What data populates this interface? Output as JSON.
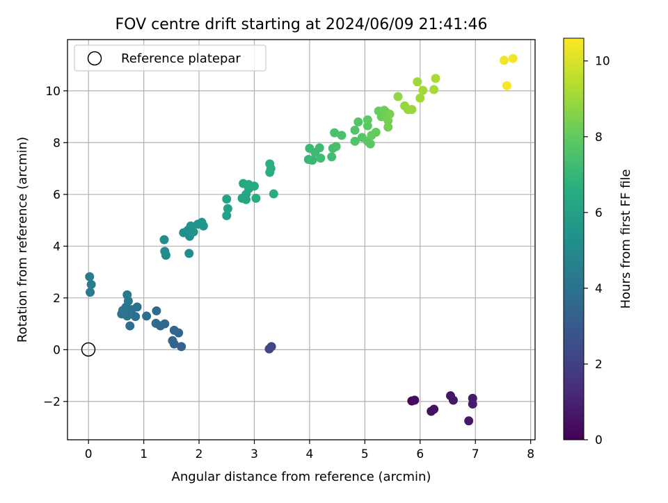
{
  "chart_data": {
    "type": "scatter",
    "title": "FOV centre drift starting at 2024/06/09 21:41:46",
    "xlabel": "Angular distance from reference (arcmin)",
    "ylabel": "Rotation from reference (arcmin)",
    "xlim": [
      -0.38,
      8.08
    ],
    "ylim": [
      -3.48,
      11.98
    ],
    "xticks": [
      0,
      1,
      2,
      3,
      4,
      5,
      6,
      7,
      8
    ],
    "yticks": [
      -2,
      0,
      2,
      4,
      6,
      8,
      10
    ],
    "grid": true,
    "legend": {
      "position": "top-left",
      "entries": [
        {
          "label": "Reference platepar",
          "marker": "open-circle"
        }
      ]
    },
    "reference_point": {
      "x": 0,
      "y": 0
    },
    "colorbar": {
      "label": "Hours from first FF file",
      "min": 0,
      "max": 10.6,
      "ticks": [
        0,
        2,
        4,
        6,
        8,
        10
      ],
      "colormap": "viridis"
    },
    "points": [
      {
        "x": 5.85,
        "y": -1.98,
        "h": 0.25
      },
      {
        "x": 5.9,
        "y": -1.95,
        "h": 0.3
      },
      {
        "x": 6.2,
        "y": -2.38,
        "h": 0.45
      },
      {
        "x": 6.25,
        "y": -2.3,
        "h": 0.5
      },
      {
        "x": 6.55,
        "y": -1.78,
        "h": 0.6
      },
      {
        "x": 6.6,
        "y": -1.95,
        "h": 0.65
      },
      {
        "x": 6.88,
        "y": -2.75,
        "h": 0.7
      },
      {
        "x": 6.95,
        "y": -1.88,
        "h": 0.75
      },
      {
        "x": 6.95,
        "y": -2.1,
        "h": 0.8
      },
      {
        "x": 3.27,
        "y": 0.03,
        "h": 2.25
      },
      {
        "x": 3.31,
        "y": 0.12,
        "h": 2.3
      },
      {
        "x": 1.68,
        "y": 0.12,
        "h": 3.3
      },
      {
        "x": 1.55,
        "y": 0.22,
        "h": 3.35
      },
      {
        "x": 1.52,
        "y": 0.35,
        "h": 3.4
      },
      {
        "x": 1.63,
        "y": 0.65,
        "h": 3.45
      },
      {
        "x": 1.55,
        "y": 0.75,
        "h": 3.5
      },
      {
        "x": 1.38,
        "y": 1.0,
        "h": 3.55
      },
      {
        "x": 1.3,
        "y": 0.92,
        "h": 3.6
      },
      {
        "x": 1.22,
        "y": 1.02,
        "h": 3.65
      },
      {
        "x": 1.23,
        "y": 1.5,
        "h": 3.7
      },
      {
        "x": 1.05,
        "y": 1.3,
        "h": 3.75
      },
      {
        "x": 0.75,
        "y": 0.92,
        "h": 3.8
      },
      {
        "x": 0.85,
        "y": 1.28,
        "h": 3.85
      },
      {
        "x": 0.88,
        "y": 1.65,
        "h": 3.9
      },
      {
        "x": 0.78,
        "y": 1.55,
        "h": 3.95
      },
      {
        "x": 0.7,
        "y": 1.3,
        "h": 4.0
      },
      {
        "x": 0.6,
        "y": 1.38,
        "h": 4.05
      },
      {
        "x": 0.62,
        "y": 1.52,
        "h": 4.1
      },
      {
        "x": 0.68,
        "y": 1.65,
        "h": 4.15
      },
      {
        "x": 0.72,
        "y": 1.88,
        "h": 4.2
      },
      {
        "x": 0.7,
        "y": 2.12,
        "h": 4.25
      },
      {
        "x": 0.03,
        "y": 2.22,
        "h": 4.3
      },
      {
        "x": 0.05,
        "y": 2.52,
        "h": 4.35
      },
      {
        "x": 0.02,
        "y": 2.82,
        "h": 4.4
      },
      {
        "x": 1.4,
        "y": 3.65,
        "h": 5.0
      },
      {
        "x": 1.38,
        "y": 3.8,
        "h": 5.05
      },
      {
        "x": 1.37,
        "y": 4.25,
        "h": 5.1
      },
      {
        "x": 1.82,
        "y": 3.72,
        "h": 5.15
      },
      {
        "x": 1.72,
        "y": 4.52,
        "h": 5.2
      },
      {
        "x": 1.83,
        "y": 4.38,
        "h": 5.25
      },
      {
        "x": 1.8,
        "y": 4.62,
        "h": 5.3
      },
      {
        "x": 1.85,
        "y": 4.78,
        "h": 5.35
      },
      {
        "x": 1.9,
        "y": 4.55,
        "h": 5.4
      },
      {
        "x": 1.98,
        "y": 4.85,
        "h": 5.45
      },
      {
        "x": 2.05,
        "y": 4.92,
        "h": 5.5
      },
      {
        "x": 2.08,
        "y": 4.78,
        "h": 5.55
      },
      {
        "x": 2.5,
        "y": 5.18,
        "h": 6.0
      },
      {
        "x": 2.52,
        "y": 5.45,
        "h": 6.05
      },
      {
        "x": 2.5,
        "y": 5.82,
        "h": 6.1
      },
      {
        "x": 2.78,
        "y": 5.85,
        "h": 6.15
      },
      {
        "x": 2.85,
        "y": 5.8,
        "h": 6.2
      },
      {
        "x": 2.85,
        "y": 6.0,
        "h": 6.25
      },
      {
        "x": 2.9,
        "y": 6.22,
        "h": 6.3
      },
      {
        "x": 2.8,
        "y": 6.42,
        "h": 6.35
      },
      {
        "x": 2.9,
        "y": 6.38,
        "h": 6.4
      },
      {
        "x": 3.0,
        "y": 6.32,
        "h": 6.45
      },
      {
        "x": 3.03,
        "y": 5.85,
        "h": 6.5
      },
      {
        "x": 3.35,
        "y": 6.02,
        "h": 6.55
      },
      {
        "x": 3.28,
        "y": 6.85,
        "h": 6.6
      },
      {
        "x": 3.3,
        "y": 7.0,
        "h": 6.65
      },
      {
        "x": 3.28,
        "y": 7.18,
        "h": 6.7
      },
      {
        "x": 3.98,
        "y": 7.35,
        "h": 7.0
      },
      {
        "x": 4.05,
        "y": 7.32,
        "h": 7.05
      },
      {
        "x": 4.0,
        "y": 7.78,
        "h": 7.1
      },
      {
        "x": 4.1,
        "y": 7.62,
        "h": 7.15
      },
      {
        "x": 4.18,
        "y": 7.8,
        "h": 7.2
      },
      {
        "x": 4.2,
        "y": 7.4,
        "h": 7.25
      },
      {
        "x": 4.4,
        "y": 7.45,
        "h": 7.3
      },
      {
        "x": 4.42,
        "y": 7.78,
        "h": 7.35
      },
      {
        "x": 4.48,
        "y": 7.85,
        "h": 7.4
      },
      {
        "x": 4.45,
        "y": 8.38,
        "h": 7.45
      },
      {
        "x": 4.58,
        "y": 8.28,
        "h": 7.5
      },
      {
        "x": 4.82,
        "y": 8.05,
        "h": 7.6
      },
      {
        "x": 4.82,
        "y": 8.48,
        "h": 7.65
      },
      {
        "x": 4.88,
        "y": 8.8,
        "h": 7.7
      },
      {
        "x": 4.95,
        "y": 8.2,
        "h": 7.75
      },
      {
        "x": 5.05,
        "y": 8.05,
        "h": 7.8
      },
      {
        "x": 5.1,
        "y": 7.95,
        "h": 7.85
      },
      {
        "x": 5.05,
        "y": 8.65,
        "h": 7.9
      },
      {
        "x": 5.05,
        "y": 8.88,
        "h": 7.95
      },
      {
        "x": 5.12,
        "y": 8.28,
        "h": 8.0
      },
      {
        "x": 5.2,
        "y": 8.4,
        "h": 8.05
      },
      {
        "x": 5.25,
        "y": 9.22,
        "h": 8.1
      },
      {
        "x": 5.3,
        "y": 9.0,
        "h": 8.15
      },
      {
        "x": 5.35,
        "y": 9.25,
        "h": 8.2
      },
      {
        "x": 5.38,
        "y": 9.18,
        "h": 8.25
      },
      {
        "x": 5.42,
        "y": 8.6,
        "h": 8.3
      },
      {
        "x": 5.42,
        "y": 8.85,
        "h": 8.35
      },
      {
        "x": 5.45,
        "y": 9.1,
        "h": 8.4
      },
      {
        "x": 5.6,
        "y": 9.78,
        "h": 8.8
      },
      {
        "x": 5.72,
        "y": 9.42,
        "h": 8.85
      },
      {
        "x": 5.78,
        "y": 9.28,
        "h": 8.9
      },
      {
        "x": 5.85,
        "y": 9.28,
        "h": 8.95
      },
      {
        "x": 5.95,
        "y": 10.35,
        "h": 9.0
      },
      {
        "x": 6.0,
        "y": 9.72,
        "h": 9.05
      },
      {
        "x": 6.05,
        "y": 10.02,
        "h": 9.1
      },
      {
        "x": 6.25,
        "y": 10.05,
        "h": 9.15
      },
      {
        "x": 6.28,
        "y": 10.48,
        "h": 9.2
      },
      {
        "x": 7.52,
        "y": 11.18,
        "h": 10.4
      },
      {
        "x": 7.68,
        "y": 11.25,
        "h": 10.45
      },
      {
        "x": 7.57,
        "y": 10.2,
        "h": 10.5
      }
    ]
  }
}
